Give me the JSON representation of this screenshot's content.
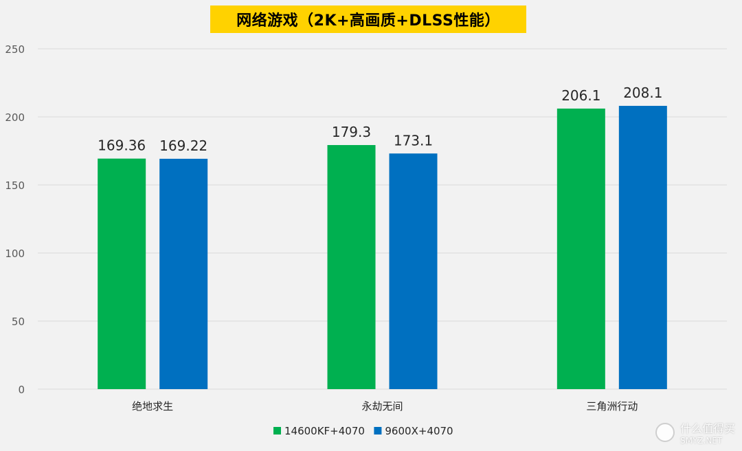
{
  "chart_data": {
    "type": "bar",
    "title": "网络游戏（2K+高画质+DLSS性能）",
    "categories": [
      "绝地求生",
      "永劫无间",
      "三角洲行动"
    ],
    "series": [
      {
        "name": "14600KF+4070",
        "values": [
          169.36,
          179.3,
          206.1
        ],
        "value_labels": [
          "169.36",
          "179.3",
          "206.1"
        ],
        "color": "#00b050"
      },
      {
        "name": "9600X+4070",
        "values": [
          169.22,
          173.1,
          208.1
        ],
        "value_labels": [
          "169.22",
          "173.1",
          "208.1"
        ],
        "color": "#0070c0"
      }
    ],
    "ylim": [
      0,
      250
    ],
    "yticks": [
      0,
      50,
      100,
      150,
      200,
      250
    ],
    "grid": true,
    "legend": "bottom",
    "xlabel": "",
    "ylabel": ""
  },
  "watermark": {
    "text": "什么值得买",
    "subtext": "SMYZ.NET"
  },
  "colors": {
    "title_bg": "#ffd200",
    "grid": "#d9d9d9",
    "background": "#f2f2f2"
  }
}
